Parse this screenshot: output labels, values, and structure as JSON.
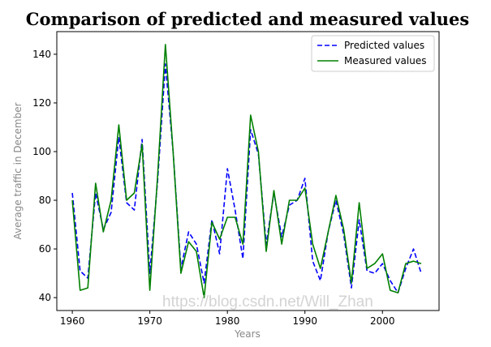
{
  "chart_data": {
    "type": "line",
    "title": "Comparison of predicted and measured values",
    "xlabel": "Years",
    "ylabel": "Average traffic in December",
    "xlim": [
      1958.0,
      2007.3
    ],
    "ylim": [
      34.7,
      149.3
    ],
    "xticks": [
      1960,
      1970,
      1980,
      1990,
      2000
    ],
    "yticks": [
      40,
      60,
      80,
      100,
      120,
      140
    ],
    "grid": false,
    "legend_position": "top-right",
    "x": [
      1960,
      1961,
      1962,
      1963,
      1964,
      1965,
      1966,
      1967,
      1968,
      1969,
      1970,
      1971,
      1972,
      1973,
      1974,
      1975,
      1976,
      1977,
      1978,
      1979,
      1980,
      1981,
      1982,
      1983,
      1984,
      1985,
      1986,
      1987,
      1988,
      1989,
      1990,
      1991,
      1992,
      1993,
      1994,
      1995,
      1996,
      1997,
      1998,
      1999,
      2000,
      2001,
      2002,
      2003,
      2004,
      2005
    ],
    "series": [
      {
        "name": "Predicted values",
        "color": "#0000ff",
        "style": "dashed",
        "values": [
          83,
          51,
          48,
          83,
          68,
          75,
          106,
          79,
          76,
          105,
          50,
          88,
          136,
          100,
          52,
          67,
          62,
          46,
          72,
          58,
          93,
          76,
          56,
          109,
          99,
          62,
          83,
          65,
          78,
          80,
          89,
          55,
          47,
          67,
          80,
          66,
          44,
          72,
          51,
          50,
          54,
          47,
          42,
          52,
          60,
          50
        ]
      },
      {
        "name": "Measured values",
        "color": "#008000",
        "style": "solid",
        "values": [
          80,
          43,
          44,
          87,
          67,
          80,
          111,
          80,
          83,
          103,
          43,
          90,
          144,
          100,
          50,
          63,
          59,
          40,
          71,
          64,
          73,
          73,
          62,
          115,
          100,
          59,
          84,
          62,
          80,
          80,
          85,
          62,
          52,
          67,
          82,
          68,
          46,
          79,
          52,
          54,
          58,
          43,
          42,
          54,
          55,
          54
        ]
      }
    ]
  },
  "watermark": "https://blog.csdn.net/Will_Zhan"
}
